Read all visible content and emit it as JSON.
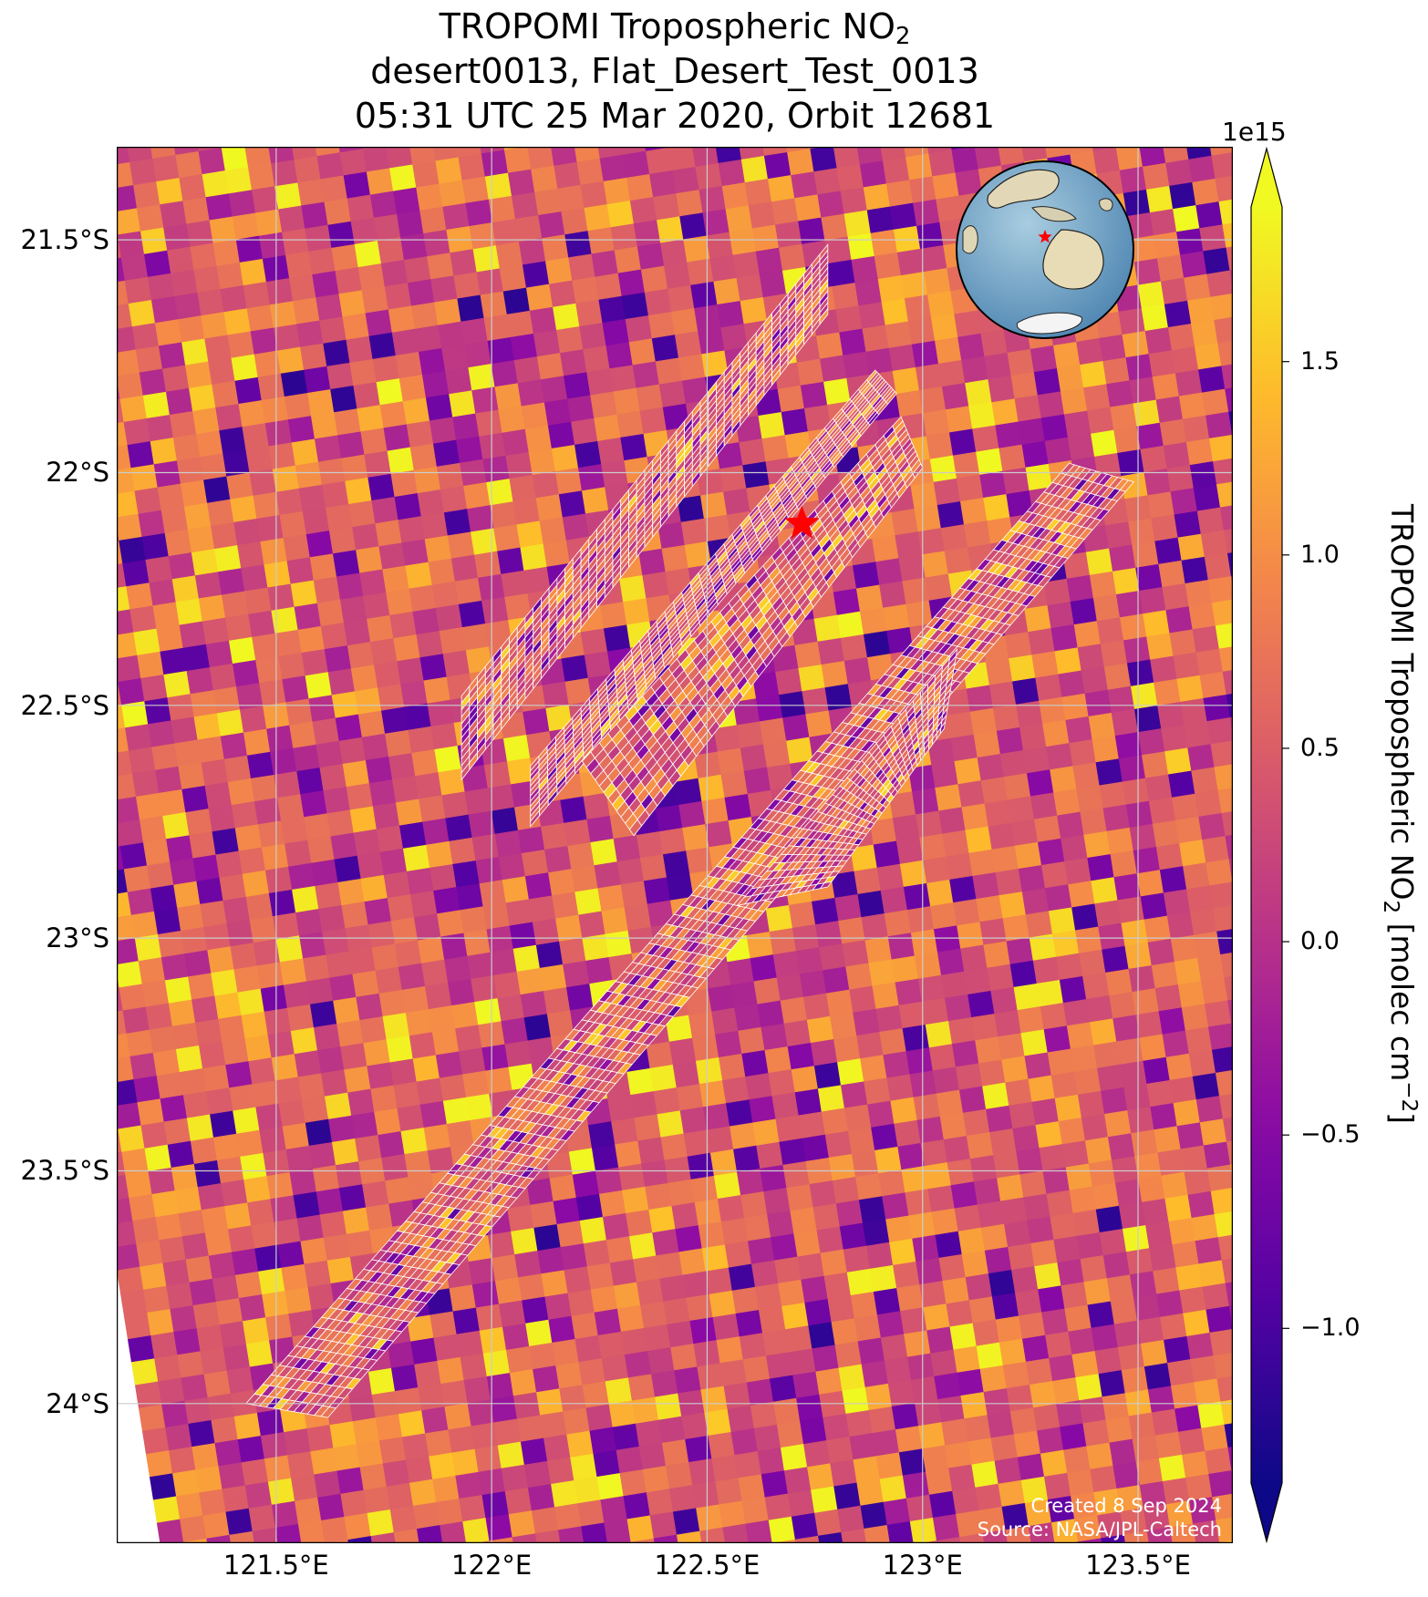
{
  "title": {
    "line1_main": "TROPOMI Tropospheric NO",
    "line1_sub": "2",
    "line2": "desert0013, Flat_Desert_Test_0013",
    "line3": "05:31 UTC 25 Mar 2020, Orbit 12681"
  },
  "map": {
    "lon_range": [
      121.13,
      123.72
    ],
    "lat_range": [
      -24.3,
      -21.3
    ],
    "lon_ticks": [
      121.5,
      122.0,
      122.5,
      123.0,
      123.5
    ],
    "lat_ticks": [
      -21.5,
      -22.0,
      -22.5,
      -23.0,
      -23.5,
      -24.0
    ],
    "lon_tick_labels": [
      "121.5°E",
      "122°E",
      "122.5°E",
      "123°E",
      "123.5°E"
    ],
    "lat_tick_labels": [
      "21.5°S",
      "22°S",
      "22.5°S",
      "23°S",
      "23.5°S",
      "24°S"
    ],
    "gridlines": true,
    "site_marker": {
      "lon": 122.72,
      "lat": -22.11,
      "symbol": "star",
      "color": "#ff0000"
    },
    "inset_globe": {
      "description_icon": "globe-icon",
      "marker_color": "#ff0000",
      "placement": "top-right"
    },
    "target_swaths": [
      {
        "corners": [
          [
            121.93,
            -22.48
          ],
          [
            122.78,
            -21.51
          ],
          [
            122.78,
            -21.66
          ],
          [
            121.93,
            -22.66
          ]
        ]
      },
      {
        "corners": [
          [
            122.09,
            -22.63
          ],
          [
            122.89,
            -21.78
          ],
          [
            122.94,
            -21.83
          ],
          [
            122.09,
            -22.76
          ]
        ]
      },
      {
        "corners": [
          [
            122.21,
            -22.62
          ],
          [
            122.95,
            -21.88
          ],
          [
            123.0,
            -21.99
          ],
          [
            122.33,
            -22.78
          ]
        ]
      },
      {
        "corners": [
          [
            121.43,
            -24.0
          ],
          [
            123.34,
            -21.98
          ],
          [
            123.49,
            -22.02
          ],
          [
            121.62,
            -24.03
          ]
        ]
      },
      {
        "corners": [
          [
            122.57,
            -22.93
          ],
          [
            123.08,
            -22.38
          ],
          [
            123.05,
            -22.55
          ],
          [
            122.78,
            -22.89
          ]
        ]
      }
    ],
    "pixel_value_range": [
      -1.4,
      1.9
    ],
    "colormap": "plasma"
  },
  "colorbar": {
    "exponent_label": "1e15",
    "min": -1.4,
    "max": 1.9,
    "ticks": [
      -1.0,
      -0.5,
      0.0,
      0.5,
      1.0,
      1.5
    ],
    "tick_labels": [
      "−1.0",
      "−0.5",
      "0.0",
      "0.5",
      "1.0",
      "1.5"
    ],
    "extend": "both",
    "label_main": "TROPOMI Tropospheric NO",
    "label_sub": "2",
    "label_units_open": " [molec cm",
    "label_sup": "−2",
    "label_close": "]"
  },
  "credits": {
    "created": "Created 8 Sep 2024",
    "source": "Source: NASA/JPL-Caltech"
  },
  "colors": {
    "site_marker": "#ff0000",
    "credit_text": "#ffffff",
    "swath_outline": "#ffffff",
    "gridline": "#cccccc"
  }
}
